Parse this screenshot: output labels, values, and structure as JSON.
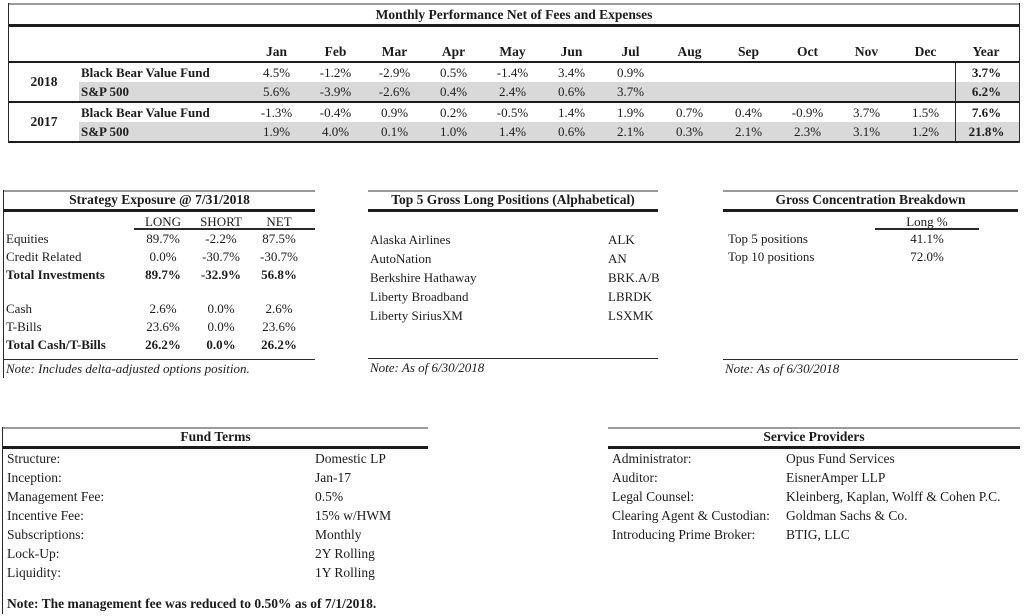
{
  "colors": {
    "shaded_row": "#d9d9d9",
    "rule_dark": "#1c1c1c",
    "rule_gray": "#9a9a9a"
  },
  "performance": {
    "title": "Monthly Performance Net of Fees and Expenses",
    "columns": [
      "Jan",
      "Feb",
      "Mar",
      "Apr",
      "May",
      "Jun",
      "Jul",
      "Aug",
      "Sep",
      "Oct",
      "Nov",
      "Dec",
      "Year"
    ],
    "groups": [
      {
        "year": "2018",
        "rows": [
          {
            "name": "Black Bear Value Fund",
            "shaded": false,
            "values": [
              "4.5%",
              "-1.2%",
              "-2.9%",
              "0.5%",
              "-1.4%",
              "3.4%",
              "0.9%",
              "",
              "",
              "",
              "",
              ""
            ],
            "year_total": "3.7%"
          },
          {
            "name": "S&P 500",
            "shaded": true,
            "values": [
              "5.6%",
              "-3.9%",
              "-2.6%",
              "0.4%",
              "2.4%",
              "0.6%",
              "3.7%",
              "",
              "",
              "",
              "",
              ""
            ],
            "year_total": "6.2%"
          }
        ]
      },
      {
        "year": "2017",
        "rows": [
          {
            "name": "Black Bear Value Fund",
            "shaded": false,
            "values": [
              "-1.3%",
              "-0.4%",
              "0.9%",
              "0.2%",
              "-0.5%",
              "1.4%",
              "1.9%",
              "0.7%",
              "0.4%",
              "-0.9%",
              "3.7%",
              "1.5%"
            ],
            "year_total": "7.6%"
          },
          {
            "name": "S&P 500",
            "shaded": true,
            "values": [
              "1.9%",
              "4.0%",
              "0.1%",
              "1.0%",
              "1.4%",
              "0.6%",
              "2.1%",
              "0.3%",
              "2.1%",
              "2.3%",
              "3.1%",
              "1.2%"
            ],
            "year_total": "21.8%"
          }
        ]
      }
    ]
  },
  "strategy_exposure": {
    "title": "Strategy Exposure @ 7/31/2018",
    "columns": [
      "LONG",
      "SHORT",
      "NET"
    ],
    "rows": [
      {
        "label": "Equities",
        "long": "89.7%",
        "short": "-2.2%",
        "net": "87.5%",
        "bold": false
      },
      {
        "label": "Credit Related",
        "long": "0.0%",
        "short": "-30.7%",
        "net": "-30.7%",
        "bold": false
      },
      {
        "label": "Total Investments",
        "long": "89.7%",
        "short": "-32.9%",
        "net": "56.8%",
        "bold": true
      },
      {
        "spacer": true
      },
      {
        "label": "Cash",
        "long": "2.6%",
        "short": "0.0%",
        "net": "2.6%",
        "bold": false
      },
      {
        "label": "T-Bills",
        "long": "23.6%",
        "short": "0.0%",
        "net": "23.6%",
        "bold": false
      },
      {
        "label": "Total Cash/T-Bills",
        "long": "26.2%",
        "short": "0.0%",
        "net": "26.2%",
        "bold": true
      }
    ],
    "note": "Note: Includes delta-adjusted options position."
  },
  "top_positions": {
    "title": "Top 5 Gross Long Positions (Alphabetical)",
    "rows": [
      {
        "name": "Alaska Airlines",
        "ticker": "ALK"
      },
      {
        "name": "AutoNation",
        "ticker": "AN"
      },
      {
        "name": "Berkshire Hathaway",
        "ticker": "BRK.A/B"
      },
      {
        "name": "Liberty Broadband",
        "ticker": "LBRDK"
      },
      {
        "name": "Liberty SiriusXM",
        "ticker": "LSXMK"
      }
    ],
    "note": "Note: As of 6/30/2018"
  },
  "concentration": {
    "title": "Gross Concentration Breakdown",
    "column": "Long %",
    "rows": [
      {
        "label": "Top 5 positions",
        "value": "41.1%"
      },
      {
        "label": "Top 10 positions",
        "value": "72.0%"
      }
    ],
    "note": "Note: As of 6/30/2018"
  },
  "fund_terms": {
    "title": "Fund Terms",
    "rows": [
      {
        "label": "Structure:",
        "value": "Domestic LP"
      },
      {
        "label": "Inception:",
        "value": "Jan-17"
      },
      {
        "label": "Management Fee:",
        "value": "0.5%"
      },
      {
        "label": "Incentive Fee:",
        "value": "15% w/HWM"
      },
      {
        "label": "Subscriptions:",
        "value": "Monthly"
      },
      {
        "label": "Lock-Up:",
        "value": "2Y Rolling"
      },
      {
        "label": "Liquidity:",
        "value": "1Y Rolling"
      }
    ],
    "note": "Note: The management fee was reduced to 0.50% as of 7/1/2018."
  },
  "service_providers": {
    "title": "Service Providers",
    "rows": [
      {
        "label": "Administrator:",
        "value": "Opus Fund Services"
      },
      {
        "label": "Auditor:",
        "value": "EisnerAmper LLP"
      },
      {
        "label": "Legal Counsel:",
        "value": "Kleinberg, Kaplan, Wolff & Cohen P.C."
      },
      {
        "label": "Clearing Agent & Custodian:",
        "value": "Goldman Sachs & Co."
      },
      {
        "label": "Introducing Prime Broker:",
        "value": "BTIG, LLC"
      }
    ]
  }
}
